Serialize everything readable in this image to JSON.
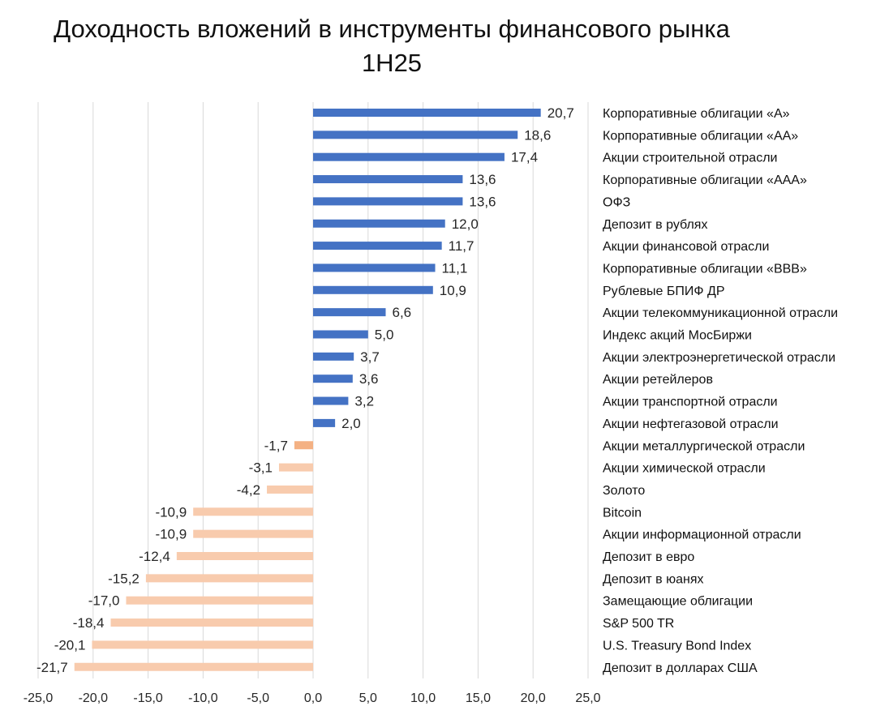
{
  "chart_data": {
    "type": "bar",
    "orientation": "horizontal",
    "title": "Доходность вложений в инструменты финансового рынка",
    "subtitle": "1H25",
    "categories": [
      "Корпоративные облигации «A»",
      "Корпоративные облигации «AA»",
      "Акции строительной отрасли",
      "Корпоративные облигации «AAA»",
      "ОФЗ",
      "Депозит в рублях",
      "Акции финансовой отрасли",
      "Корпоративные облигации «BBB»",
      "Рублевые БПИФ ДР",
      "Акции телекоммуникационной отрасли",
      "Индекс акций МосБиржи",
      "Акции электроэнергетической отрасли",
      "Акции ретейлеров",
      "Акции транспортной отрасли",
      "Акции нефтегазовой отрасли",
      "Акции металлургической отрасли",
      "Акции химической отрасли",
      "Золото",
      "Bitcoin",
      "Акции информационной отрасли",
      "Депозит в евро",
      "Депозит в юанях",
      "Замещающие облигации",
      "S&P 500 TR",
      "U.S. Treasury Bond Index",
      "Депозит в долларах США"
    ],
    "values": [
      20.7,
      18.6,
      17.4,
      13.6,
      13.6,
      12.0,
      11.7,
      11.1,
      10.9,
      6.6,
      5.0,
      3.7,
      3.6,
      3.2,
      2.0,
      -1.7,
      -3.1,
      -4.2,
      -10.9,
      -10.9,
      -12.4,
      -15.2,
      -17.0,
      -18.4,
      -20.1,
      -21.7
    ],
    "value_labels": [
      "20,7",
      "18,6",
      "17,4",
      "13,6",
      "13,6",
      "12,0",
      "11,7",
      "11,1",
      "10,9",
      "6,6",
      "5,0",
      "3,7",
      "3,6",
      "3,2",
      "2,0",
      "-1,7",
      "-3,1",
      "-4,2",
      "-10,9",
      "-10,9",
      "-12,4",
      "-15,2",
      "-17,0",
      "-18,4",
      "-20,1",
      "-21,7"
    ],
    "xlim": [
      -25,
      25
    ],
    "x_ticks": [
      -25,
      -20,
      -15,
      -10,
      -5,
      0,
      5,
      10,
      15,
      20,
      25
    ],
    "x_tick_labels": [
      "-25,0",
      "-20,0",
      "-15,0",
      "-10,0",
      "-5,0",
      "0,0",
      "5,0",
      "10,0",
      "15,0",
      "20,0",
      "25,0"
    ],
    "xlabel": "",
    "ylabel": "",
    "grid": "vertical",
    "legend": "none",
    "colors": {
      "positive": "#4472c4",
      "negative": "#f8cbad",
      "negative_highlight": "#f4b183",
      "grid": "#d9d9d9",
      "text": "#262626"
    },
    "highlighted_index": 15
  }
}
